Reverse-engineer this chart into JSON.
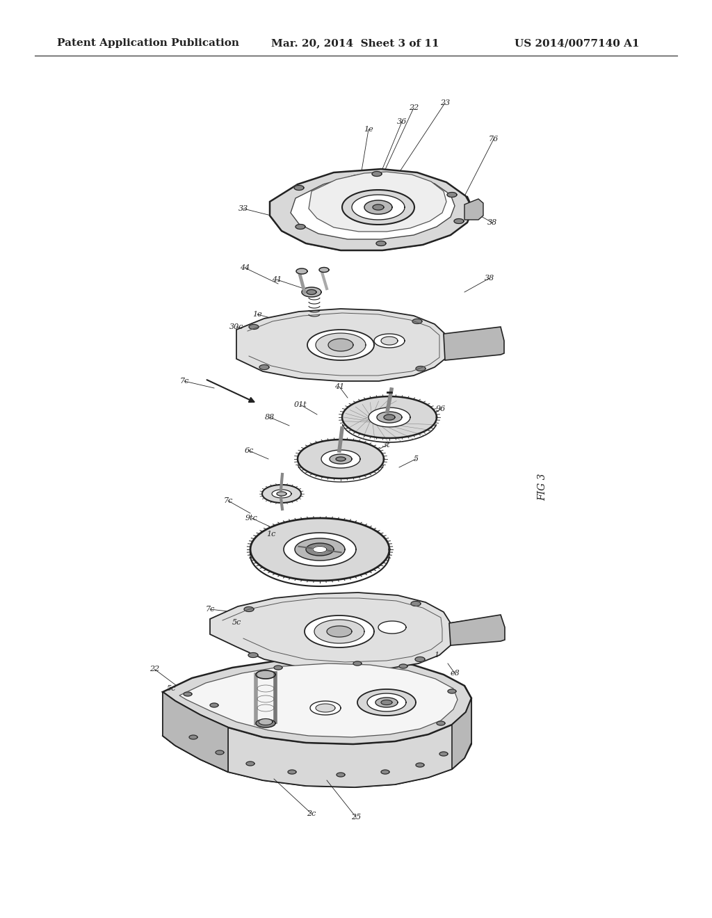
{
  "background_color": "#ffffff",
  "header_left": "Patent Application Publication",
  "header_center": "Mar. 20, 2014  Sheet 3 of 11",
  "header_right": "US 2014/0077140 A1",
  "header_fontsize": 11,
  "header_fontweight": "bold",
  "fig_label": "FIG 3",
  "fig_label_fontsize": 10,
  "line_color": "#222222",
  "light_gray": "#d8d8d8",
  "mid_gray": "#b8b8b8",
  "dark_gray": "#888888"
}
